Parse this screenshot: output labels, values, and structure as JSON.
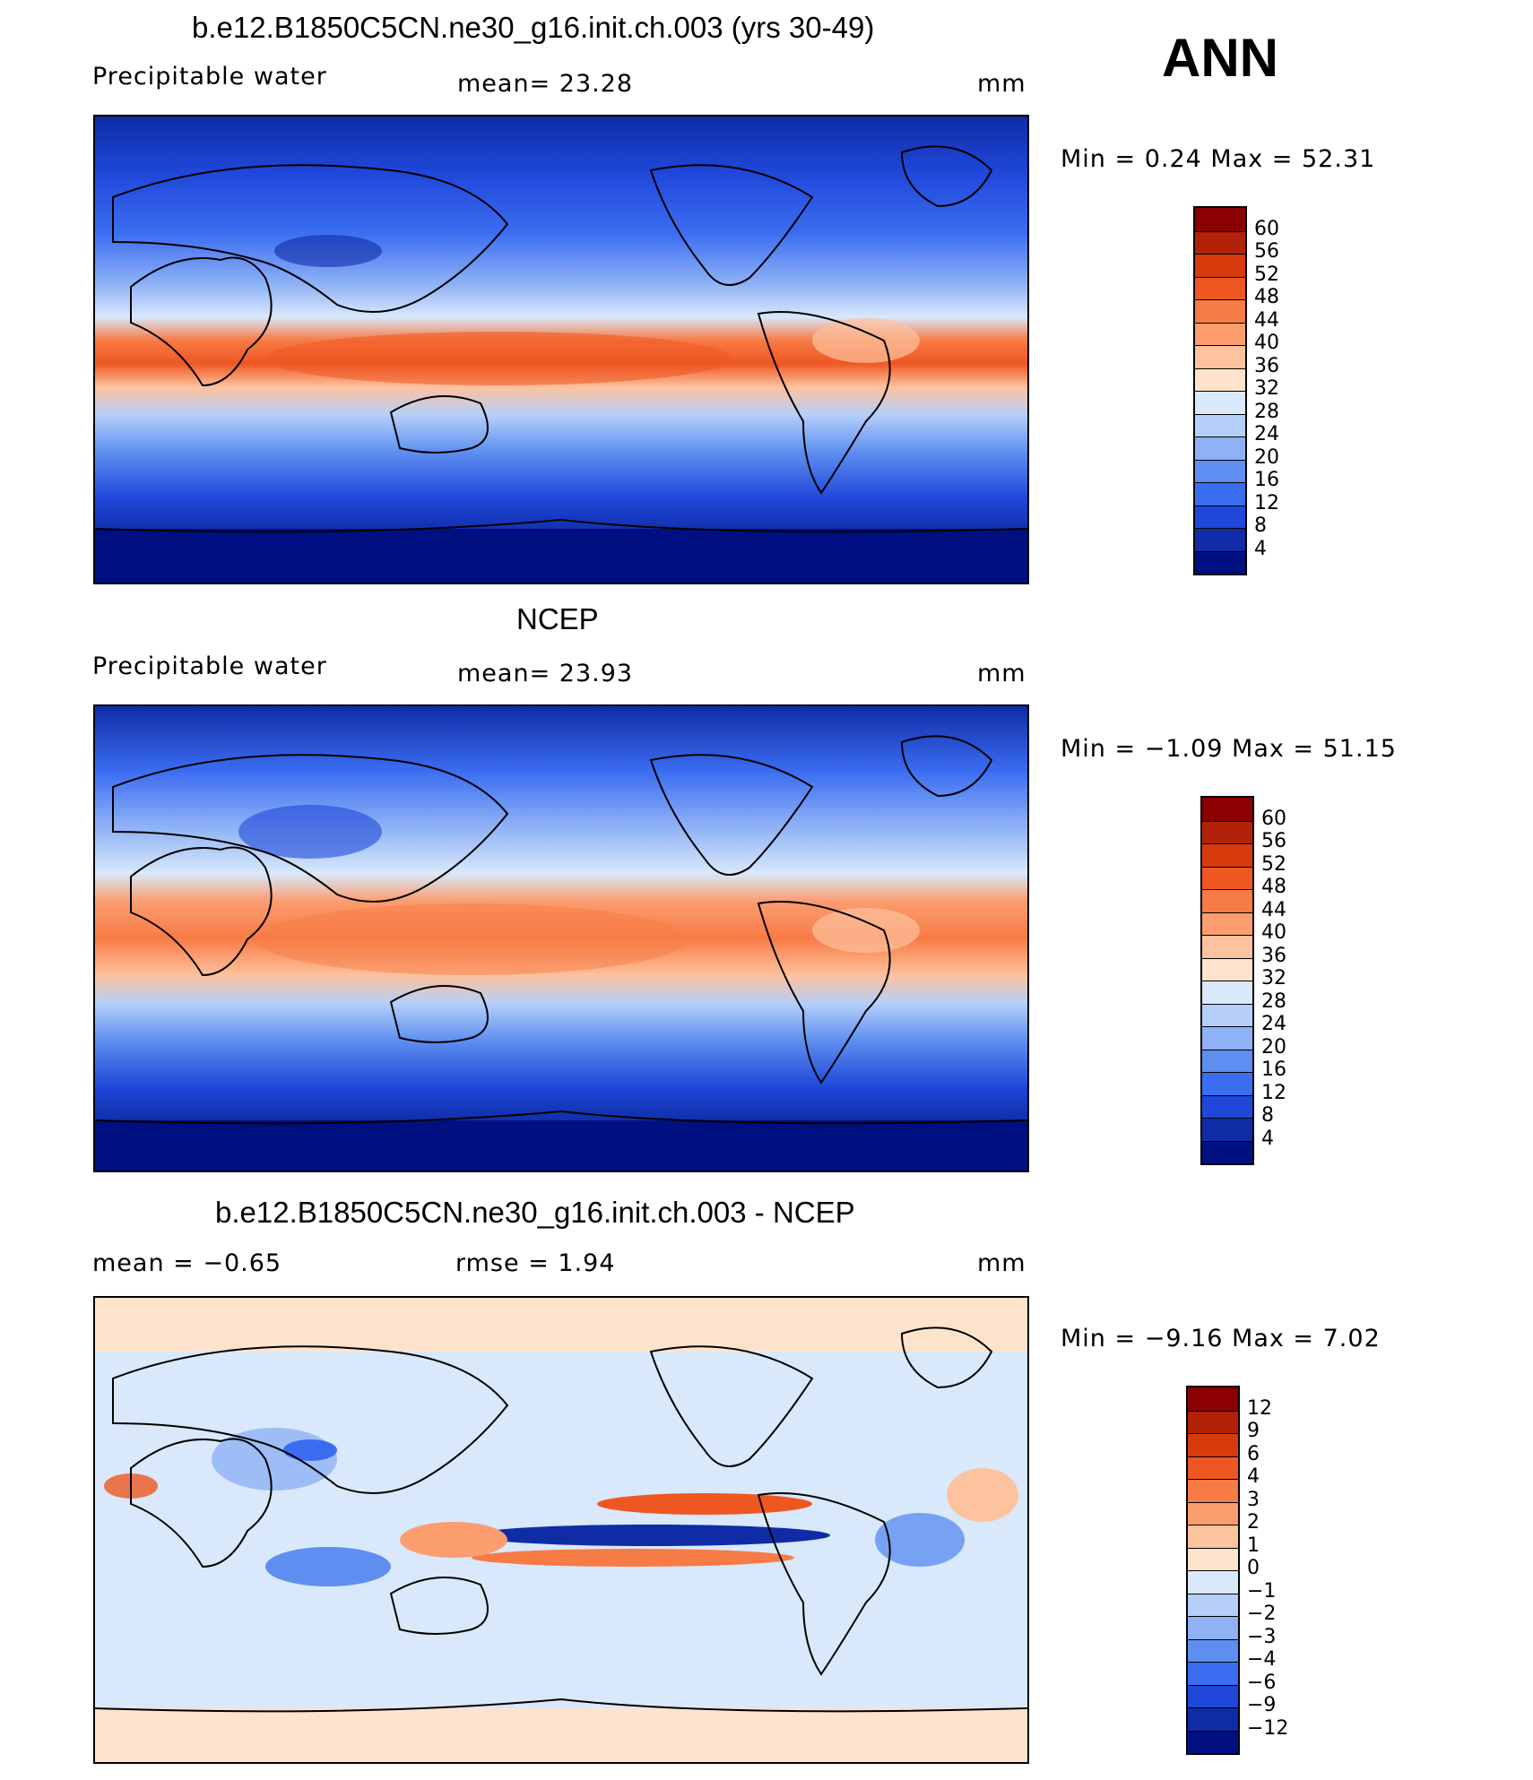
{
  "season": "ANN",
  "panels": [
    {
      "title": "b.e12.B1850C5CN.ne30_g16.init.ch.003 (yrs 30-49)",
      "left_label": "Precipitable  water",
      "center_label": "mean=   23.28",
      "right_label": "mm",
      "minmax": "Min  =     0.24  Max  =    52.31",
      "colorbar": {
        "levels": [
          "60",
          "56",
          "52",
          "48",
          "44",
          "40",
          "36",
          "32",
          "28",
          "24",
          "20",
          "16",
          "12",
          "8",
          "4"
        ],
        "colors": [
          "#8b0000",
          "#b22208",
          "#d73a0c",
          "#ee5722",
          "#f77b45",
          "#fb9d6f",
          "#fdc29e",
          "#fde3cc",
          "#d9e8fb",
          "#b5cffa",
          "#8fb2f6",
          "#5e8ff0",
          "#3b6df1",
          "#1f47d9",
          "#0f2ca6",
          "#001080"
        ]
      }
    },
    {
      "title": "NCEP",
      "left_label": "Precipitable  water",
      "center_label": "mean=   23.93",
      "right_label": "mm",
      "minmax": "Min  =   −1.09  Max  =    51.15",
      "colorbar": {
        "levels": [
          "60",
          "56",
          "52",
          "48",
          "44",
          "40",
          "36",
          "32",
          "28",
          "24",
          "20",
          "16",
          "12",
          "8",
          "4"
        ],
        "colors": [
          "#8b0000",
          "#b22208",
          "#d73a0c",
          "#ee5722",
          "#f77b45",
          "#fb9d6f",
          "#fdc29e",
          "#fde3cc",
          "#d9e8fb",
          "#b5cffa",
          "#8fb2f6",
          "#5e8ff0",
          "#3b6df1",
          "#1f47d9",
          "#0f2ca6",
          "#001080"
        ]
      }
    },
    {
      "title": "b.e12.B1850C5CN.ne30_g16.init.ch.003 - NCEP",
      "left_label": "mean  =    −0.65",
      "center_label": "rmse  =     1.94",
      "right_label": "mm",
      "minmax": "Min  =   −9.16  Max  =     7.02",
      "colorbar": {
        "levels": [
          "12",
          "9",
          "6",
          "4",
          "3",
          "2",
          "1",
          "0",
          "−1",
          "−2",
          "−3",
          "−4",
          "−6",
          "−9",
          "−12"
        ],
        "colors": [
          "#8b0000",
          "#b22208",
          "#d73a0c",
          "#ee5722",
          "#f77b45",
          "#fb9d6f",
          "#fdc29e",
          "#fde3cc",
          "#d9e8fb",
          "#b5cffa",
          "#8fb2f6",
          "#5e8ff0",
          "#3b6df1",
          "#1f47d9",
          "#0f2ca6",
          "#001080"
        ]
      }
    }
  ]
}
